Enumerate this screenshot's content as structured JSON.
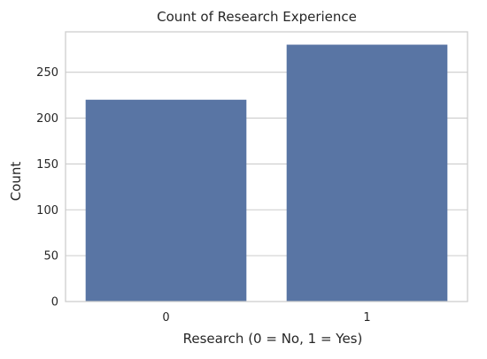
{
  "chart_data": {
    "type": "bar",
    "title": "Count of Research Experience",
    "xlabel": "Research (0 = No, 1 = Yes)",
    "ylabel": "Count",
    "categories": [
      "0",
      "1"
    ],
    "values": [
      220,
      280
    ],
    "ylim": [
      0,
      294
    ],
    "yticks": [
      0,
      50,
      100,
      150,
      200,
      250
    ],
    "grid": true,
    "legend": "none",
    "bar_color": "#5975a4",
    "grid_color": "#cccccc",
    "spine_color": "#cccccc"
  }
}
